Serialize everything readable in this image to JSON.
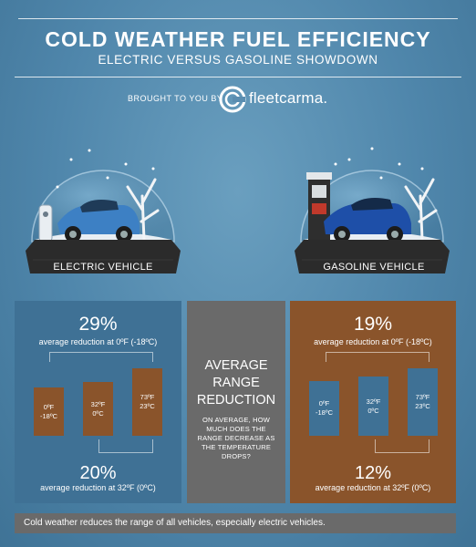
{
  "header": {
    "title": "COLD WEATHER FUEL EFFICIENCY",
    "subtitle": "ELECTRIC VERSUS GASOLINE SHOWDOWN",
    "brought_by": "BROUGHT TO YOU BY",
    "brand": "fleetcarma."
  },
  "globes": {
    "electric_label": "ELECTRIC VEHICLE",
    "gasoline_label": "GASOLINE VEHICLE"
  },
  "colors": {
    "electric_panel": "#3f7195",
    "gasoline_panel": "#8a542b",
    "middle_panel": "#6a6a6a",
    "background": "#4f86ab"
  },
  "middle": {
    "title_lines": [
      "AVERAGE",
      "RANGE",
      "REDUCTION"
    ],
    "text": "ON AVERAGE, HOW MUCH DOES THE RANGE DECREASE AS THE TEMPERATURE DROPS?"
  },
  "chart_data": [
    {
      "type": "bar",
      "series_name": "ELECTRIC VEHICLE",
      "categories": [
        "0ºF\n-18ºC",
        "32ºF\n0ºC",
        "73ºF\n23ºC"
      ],
      "values": [
        71,
        80,
        100
      ],
      "value_unit": "% of 73ºF range (estimated from bar heights)",
      "annotations": [
        {
          "pct": "29%",
          "caption": "average reduction at 0ºF (-18ºC)"
        },
        {
          "pct": "20%",
          "caption": "average reduction at 32ºF (0ºC)"
        }
      ]
    },
    {
      "type": "bar",
      "series_name": "GASOLINE VEHICLE",
      "categories": [
        "0ºF\n-18ºC",
        "32ºF\n0ºC",
        "73ºF\n23ºC"
      ],
      "values": [
        81,
        88,
        100
      ],
      "value_unit": "% of 73ºF range (estimated from bar heights)",
      "annotations": [
        {
          "pct": "19%",
          "caption": "average reduction at 0ºF (-18ºC)"
        },
        {
          "pct": "12%",
          "caption": "average reduction at 32ºF (0ºC)"
        }
      ]
    }
  ],
  "footer": {
    "text": "Cold weather reduces the range of all vehicles, especially electric vehicles."
  }
}
